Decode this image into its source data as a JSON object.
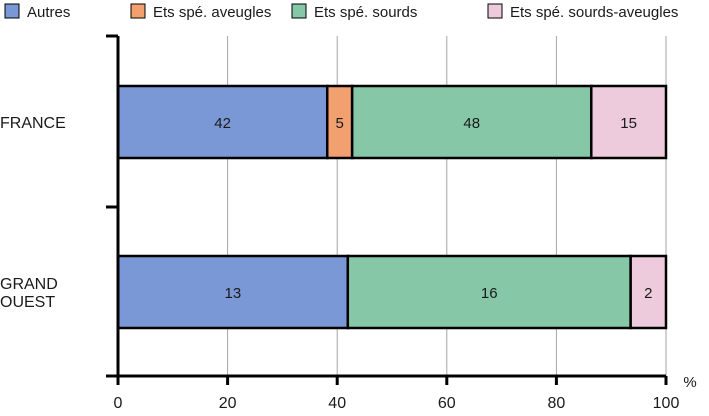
{
  "chart_data": {
    "type": "bar",
    "orientation": "horizontal",
    "stacked": "percent",
    "categories": [
      "FRANCE",
      "GRAND OUEST"
    ],
    "category_labels": [
      [
        "FRANCE"
      ],
      [
        "GRAND",
        "OUEST"
      ]
    ],
    "series": [
      {
        "name": "Autres",
        "color": "#7b98d6",
        "values": [
          42,
          13
        ]
      },
      {
        "name": "Ets spé. aveugles",
        "color": "#f2a070",
        "values": [
          5,
          0
        ]
      },
      {
        "name": "Ets spé. sourds",
        "color": "#86c7a8",
        "values": [
          48,
          16
        ]
      },
      {
        "name": "Ets spé. sourds-aveugles",
        "color": "#eecbdc",
        "values": [
          15,
          2
        ]
      }
    ],
    "x_ticks": [
      0,
      20,
      40,
      60,
      80,
      100
    ],
    "xlim": [
      0,
      100
    ],
    "x_unit": "%",
    "grid": true,
    "legend_position": "top"
  }
}
